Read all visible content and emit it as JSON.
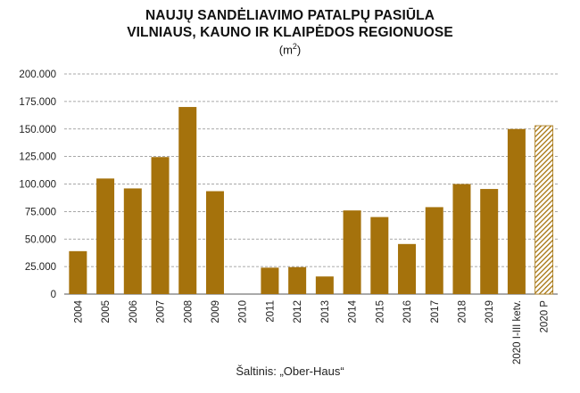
{
  "chart_data": {
    "type": "bar",
    "title_line1": "NAUJŲ SANDĖLIAVIMO PATALPŲ PASIŪLA",
    "title_line2": "VILNIAUS, KAUNO IR KLAIPĖDOS REGIONUOSE",
    "unit": "m",
    "unit_sup": "2",
    "source": "Šaltinis: „Ober-Haus“",
    "categories": [
      "2004",
      "2005",
      "2006",
      "2007",
      "2008",
      "2009",
      "2010",
      "2011",
      "2012",
      "2013",
      "2014",
      "2015",
      "2016",
      "2017",
      "2018",
      "2019",
      "2020 I-III ketv.",
      "2020 P"
    ],
    "values": [
      39000,
      105000,
      96000,
      124500,
      170000,
      93500,
      0,
      24000,
      24500,
      16000,
      76000,
      70000,
      45500,
      79000,
      100000,
      95500,
      150000,
      153000
    ],
    "forecast": [
      false,
      false,
      false,
      false,
      false,
      false,
      false,
      false,
      false,
      false,
      false,
      false,
      false,
      false,
      false,
      false,
      false,
      true
    ],
    "ylim": [
      0,
      200000
    ],
    "yticks": [
      0,
      25000,
      50000,
      75000,
      100000,
      125000,
      150000,
      175000,
      200000
    ],
    "ytick_labels": [
      "0",
      "25.000",
      "50.000",
      "75.000",
      "100.000",
      "125.000",
      "150.000",
      "175.000",
      "200.000"
    ],
    "grid": "horizontal-dashed",
    "bar_color": "#a5720c"
  }
}
